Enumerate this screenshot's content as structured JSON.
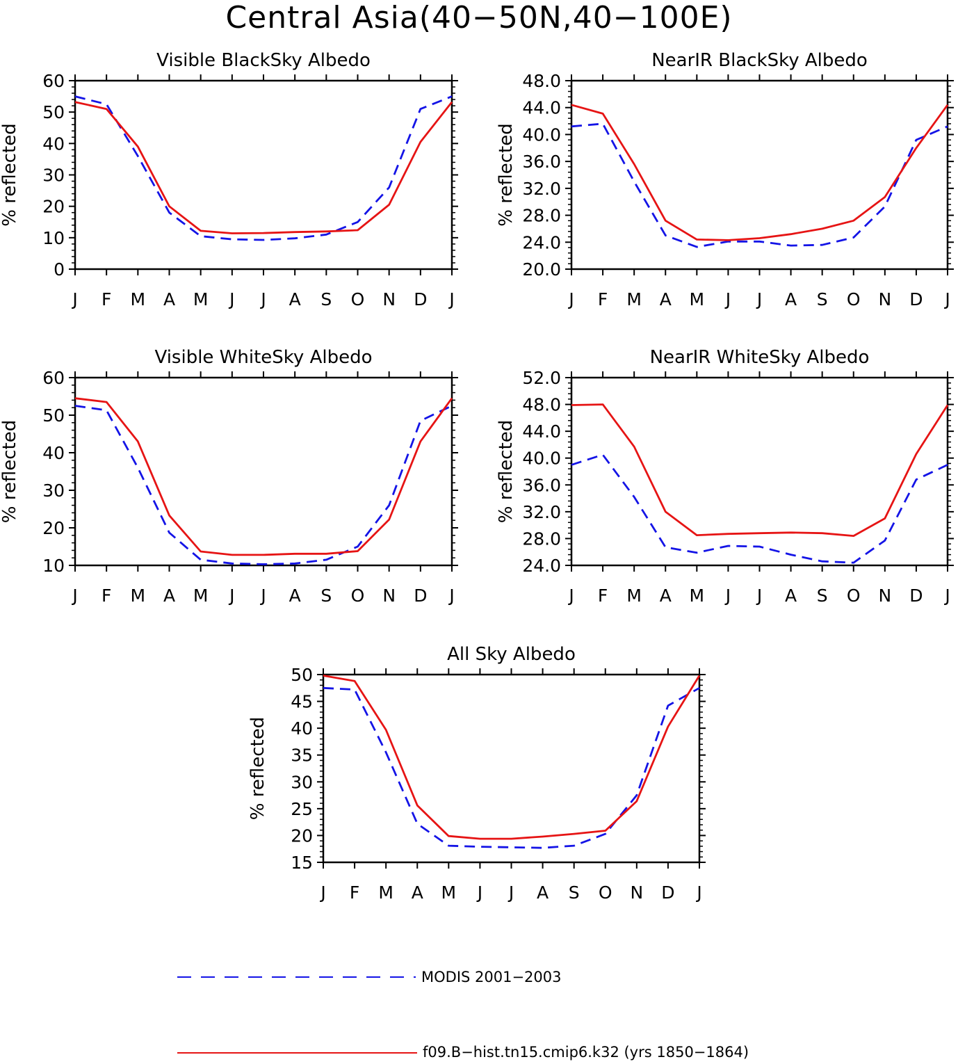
{
  "title": "Central Asia(40−50N,40−100E)",
  "legend": {
    "items": [
      {
        "label": "MODIS 2001−2003",
        "color": "#1414e6",
        "dash": "dashed"
      },
      {
        "label": "f09.B−hist.tn15.cmip6.k32 (yrs 1850−1864)",
        "color": "#e61414",
        "dash": "solid"
      }
    ]
  },
  "chart_data": [
    {
      "type": "line",
      "title": "Visible BlackSky Albedo",
      "xlabel": "",
      "ylabel": "% reflected",
      "categories": [
        "J",
        "F",
        "M",
        "A",
        "M",
        "J",
        "J",
        "A",
        "S",
        "O",
        "N",
        "D",
        "J"
      ],
      "ylim": [
        0,
        60
      ],
      "yticks": [
        "0",
        "10",
        "20",
        "30",
        "40",
        "50",
        "60"
      ],
      "series": [
        {
          "name": "MODIS 2001−2003",
          "values": [
            55.0,
            52.5,
            36.0,
            18.0,
            10.5,
            9.5,
            9.3,
            9.8,
            11.0,
            15.0,
            26.0,
            51.0,
            55.0
          ]
        },
        {
          "name": "f09.B−hist.tn15.cmip6.k32 (yrs 1850−1864)",
          "values": [
            53.2,
            51.0,
            39.0,
            20.0,
            12.2,
            11.4,
            11.5,
            11.8,
            12.0,
            12.4,
            20.5,
            40.5,
            53.2
          ]
        }
      ]
    },
    {
      "type": "line",
      "title": "NearIR BlackSky Albedo",
      "xlabel": "",
      "ylabel": "% reflected",
      "categories": [
        "J",
        "F",
        "M",
        "A",
        "M",
        "J",
        "J",
        "A",
        "S",
        "O",
        "N",
        "D",
        "J"
      ],
      "ylim": [
        20,
        48
      ],
      "yticks": [
        "20.0",
        "24.0",
        "28.0",
        "32.0",
        "36.0",
        "40.0",
        "44.0",
        "48.0"
      ],
      "series": [
        {
          "name": "MODIS 2001−2003",
          "values": [
            41.2,
            41.6,
            33.0,
            25.0,
            23.3,
            24.1,
            24.1,
            23.5,
            23.6,
            24.7,
            29.3,
            39.2,
            41.2
          ]
        },
        {
          "name": "f09.B−hist.tn15.cmip6.k32 (yrs 1850−1864)",
          "values": [
            44.4,
            43.1,
            35.6,
            27.2,
            24.4,
            24.3,
            24.6,
            25.2,
            26.0,
            27.2,
            30.7,
            38.0,
            44.4
          ]
        }
      ]
    },
    {
      "type": "line",
      "title": "Visible WhiteSky Albedo",
      "xlabel": "",
      "ylabel": "% reflected",
      "categories": [
        "J",
        "F",
        "M",
        "A",
        "M",
        "J",
        "J",
        "A",
        "S",
        "O",
        "N",
        "D",
        "J"
      ],
      "ylim": [
        10,
        60
      ],
      "yticks": [
        "10",
        "20",
        "30",
        "40",
        "50",
        "60"
      ],
      "series": [
        {
          "name": "MODIS 2001−2003",
          "values": [
            52.5,
            51.3,
            36.0,
            18.7,
            11.5,
            10.5,
            10.3,
            10.5,
            11.5,
            15.0,
            26.0,
            48.5,
            52.5
          ]
        },
        {
          "name": "f09.B−hist.tn15.cmip6.k32 (yrs 1850−1864)",
          "values": [
            54.5,
            53.5,
            43.0,
            23.3,
            13.7,
            12.8,
            12.8,
            13.1,
            13.1,
            13.8,
            22.2,
            43.0,
            54.5
          ]
        }
      ]
    },
    {
      "type": "line",
      "title": "NearIR WhiteSky Albedo",
      "xlabel": "",
      "ylabel": "% reflected",
      "categories": [
        "J",
        "F",
        "M",
        "A",
        "M",
        "J",
        "J",
        "A",
        "S",
        "O",
        "N",
        "D",
        "J"
      ],
      "ylim": [
        24,
        52
      ],
      "yticks": [
        "24.0",
        "28.0",
        "32.0",
        "36.0",
        "40.0",
        "44.0",
        "48.0",
        "52.0"
      ],
      "series": [
        {
          "name": "MODIS 2001−2003",
          "values": [
            39.0,
            40.5,
            34.2,
            26.7,
            25.9,
            26.9,
            26.8,
            25.6,
            24.6,
            24.4,
            27.7,
            36.8,
            39.0
          ]
        },
        {
          "name": "f09.B−hist.tn15.cmip6.k32 (yrs 1850−1864)",
          "values": [
            47.9,
            48.0,
            41.7,
            32.0,
            28.5,
            28.7,
            28.8,
            28.9,
            28.8,
            28.4,
            31.0,
            40.6,
            47.9
          ]
        }
      ]
    },
    {
      "type": "line",
      "title": "All Sky Albedo",
      "xlabel": "",
      "ylabel": "% reflected",
      "categories": [
        "J",
        "F",
        "M",
        "A",
        "M",
        "J",
        "J",
        "A",
        "S",
        "O",
        "N",
        "D",
        "J"
      ],
      "ylim": [
        15,
        50
      ],
      "yticks": [
        "15",
        "20",
        "25",
        "30",
        "35",
        "40",
        "45",
        "50"
      ],
      "series": [
        {
          "name": "MODIS 2001−2003",
          "values": [
            47.5,
            47.2,
            35.5,
            22.2,
            18.1,
            17.9,
            17.8,
            17.7,
            18.1,
            20.3,
            27.5,
            44.2,
            47.5
          ]
        },
        {
          "name": "f09.B−hist.tn15.cmip6.k32 (yrs 1850−1864)",
          "values": [
            49.8,
            48.8,
            39.7,
            25.6,
            19.9,
            19.4,
            19.4,
            19.8,
            20.3,
            20.9,
            26.4,
            40.3,
            49.8
          ]
        }
      ]
    }
  ]
}
